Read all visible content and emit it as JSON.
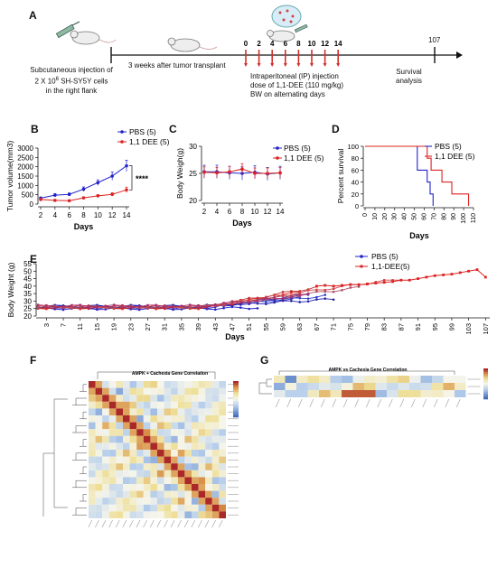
{
  "panels": {
    "A": {
      "letter": "A",
      "injection_text": [
        "Subcutaneous injection of",
        "2 X 10",
        "6",
        " SH-SY5Y  cells",
        "in the right flank"
      ],
      "transplant_text": "3 weeks after tumor transplant",
      "ip_text": [
        "Intraperitoneal (IP) injection",
        "dose of 1,1-DEE (110 mg/kg)",
        "BW on alternating days"
      ],
      "survival_text": [
        "Survival",
        "analysis"
      ],
      "timeline_ticks": [
        "0",
        "2",
        "4",
        "6",
        "8",
        "10",
        "12",
        "14"
      ],
      "end_tick": "107",
      "colors": {
        "tick_red": "#d0312d",
        "line": "#111111"
      }
    },
    "B": {
      "letter": "B",
      "significance": "****"
    },
    "C": {
      "letter": "C"
    },
    "D": {
      "letter": "D"
    },
    "E": {
      "letter": "E"
    },
    "F": {
      "letter": "F",
      "heatmap_title": "AMPK + Cachexia Gene Correlation"
    },
    "G": {
      "letter": "G",
      "heatmap_title": "AMPK vs Cachexia Gene Correlation"
    }
  },
  "chart_data": [
    {
      "id": "B",
      "type": "line",
      "xlabel": "Days",
      "ylabel": "Tumor volume(mm3)",
      "x": [
        2,
        4,
        6,
        8,
        10,
        12,
        14
      ],
      "ylim": [
        0,
        3000
      ],
      "yticks": [
        0,
        500,
        1000,
        1500,
        2000,
        2500,
        3000
      ],
      "series": [
        {
          "name": "PBS (5)",
          "color": "#2222cc",
          "values": [
            320,
            480,
            520,
            800,
            1150,
            1500,
            2050
          ],
          "err": [
            60,
            80,
            80,
            120,
            150,
            220,
            300
          ]
        },
        {
          "name": "1,1 DEE (5)",
          "color": "#dd2222",
          "values": [
            250,
            200,
            180,
            330,
            440,
            520,
            760
          ],
          "err": [
            40,
            40,
            40,
            60,
            70,
            90,
            150
          ]
        }
      ]
    },
    {
      "id": "C",
      "type": "line",
      "xlabel": "Days",
      "ylabel": "Body Weigh(g)",
      "x": [
        2,
        4,
        6,
        8,
        10,
        12,
        14
      ],
      "ylim": [
        20,
        30
      ],
      "yticks": [
        20,
        25,
        30
      ],
      "series": [
        {
          "name": "PBS (5)",
          "color": "#2222cc",
          "values": [
            25.3,
            25.3,
            25.1,
            25.0,
            25.2,
            24.9,
            25.1
          ],
          "err": [
            1.2,
            1.2,
            1.2,
            1.2,
            1.2,
            1.2,
            1.2
          ]
        },
        {
          "name": "1,1 DEE (5)",
          "color": "#dd2222",
          "values": [
            25.2,
            25.1,
            25.3,
            25.8,
            25.0,
            25.0,
            25.1
          ],
          "err": [
            1.0,
            1.0,
            1.0,
            1.0,
            1.0,
            1.0,
            1.0
          ]
        }
      ]
    },
    {
      "id": "D",
      "type": "line",
      "xlabel": "Days",
      "ylabel": "Percent survival",
      "xlim": [
        0,
        110
      ],
      "xticks": [
        0,
        10,
        20,
        30,
        40,
        50,
        60,
        70,
        80,
        90,
        100,
        110
      ],
      "ylim": [
        0,
        100
      ],
      "yticks": [
        0,
        20,
        40,
        60,
        80,
        100
      ],
      "series": [
        {
          "name": "PBS (5)",
          "color": "#2222cc",
          "steps": [
            [
              0,
              100
            ],
            [
              53,
              100
            ],
            [
              53,
              60
            ],
            [
              63,
              60
            ],
            [
              63,
              40
            ],
            [
              66,
              40
            ],
            [
              66,
              20
            ],
            [
              69,
              20
            ],
            [
              69,
              0
            ]
          ]
        },
        {
          "name": "1,1 DEE (5)",
          "color": "#dd2222",
          "steps": [
            [
              0,
              100
            ],
            [
              63,
              100
            ],
            [
              63,
              80
            ],
            [
              67,
              80
            ],
            [
              67,
              60
            ],
            [
              78,
              60
            ],
            [
              78,
              40
            ],
            [
              88,
              40
            ],
            [
              88,
              20
            ],
            [
              105,
              20
            ],
            [
              105,
              0
            ]
          ]
        }
      ]
    },
    {
      "id": "E",
      "type": "line",
      "xlabel": "Days",
      "ylabel": "Body Weight (g)",
      "xticks": [
        3,
        7,
        11,
        15,
        19,
        23,
        27,
        31,
        35,
        39,
        43,
        47,
        51,
        55,
        59,
        63,
        67,
        71,
        75,
        79,
        83,
        87,
        91,
        95,
        99,
        103,
        107
      ],
      "ylim": [
        20,
        55
      ],
      "yticks": [
        20,
        25,
        30,
        35,
        40,
        45,
        50,
        55
      ],
      "series": [
        {
          "name": "PBS (5)",
          "color": "#2222cc"
        },
        {
          "name": "1,1-DEE(5)",
          "color": "#dd2222"
        }
      ],
      "long_survivor_red": {
        "x": [
          67,
          69,
          71,
          73,
          75,
          77,
          79,
          81,
          83,
          85,
          87,
          89,
          91,
          93,
          95,
          97,
          99,
          101,
          103,
          105,
          107
        ],
        "values": [
          40,
          40.5,
          40,
          40.5,
          41,
          41,
          41.5,
          42,
          42.5,
          43,
          44,
          44,
          45,
          46,
          47,
          47.5,
          48,
          49,
          50,
          51,
          46
        ]
      }
    },
    {
      "id": "F",
      "type": "heatmap",
      "title": "AMPK + Cachexia Gene Correlation",
      "size": 20
    },
    {
      "id": "G",
      "type": "heatmap",
      "title": "AMPK vs Cachexia Gene Correlation",
      "rows": 3,
      "cols": 17
    }
  ]
}
